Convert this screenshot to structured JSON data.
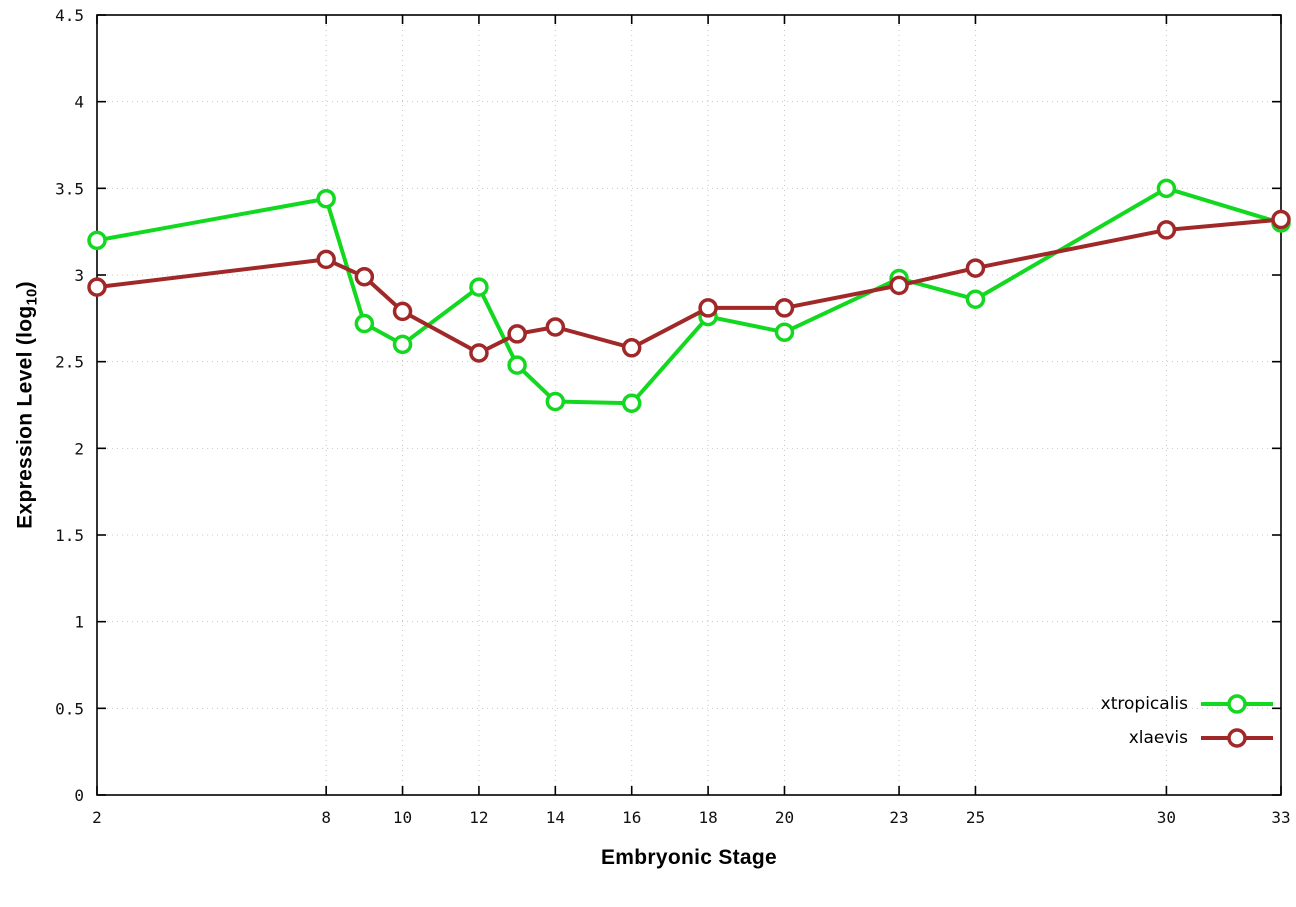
{
  "chart_data": {
    "type": "line",
    "xlabel": "Embryonic Stage",
    "ylabel": "Expression Level (log10)",
    "ylabel_parts": {
      "prefix": "Expression Level (log",
      "sub": "10",
      "suffix": ")"
    },
    "xlim": [
      2,
      33
    ],
    "ylim": [
      0,
      4.5
    ],
    "xticks": [
      2,
      8,
      10,
      12,
      14,
      16,
      18,
      20,
      23,
      25,
      30,
      33
    ],
    "yticks": [
      0,
      0.5,
      1,
      1.5,
      2,
      2.5,
      3,
      3.5,
      4,
      4.5
    ],
    "ytick_labels": [
      "0",
      "0.5",
      "1",
      "1.5",
      "2",
      "2.5",
      "3",
      "3.5",
      "4",
      "4.5"
    ],
    "grid": true,
    "grid_color": "#c8c8c8",
    "background": "#ffffff",
    "legend_position": "bottom-right",
    "marker": "open-circle",
    "x": [
      2,
      8,
      9,
      10,
      12,
      13,
      14,
      16,
      18,
      20,
      23,
      25,
      30,
      33
    ],
    "series": [
      {
        "name": "xtropicalis",
        "color": "#12d81f",
        "values": [
          3.2,
          3.44,
          2.72,
          2.6,
          2.93,
          2.48,
          2.27,
          2.26,
          2.76,
          2.67,
          2.98,
          2.86,
          3.5,
          3.3
        ]
      },
      {
        "name": "xlaevis",
        "color": "#a02828",
        "values": [
          2.93,
          3.09,
          2.99,
          2.79,
          2.55,
          2.66,
          2.7,
          2.58,
          2.81,
          2.81,
          2.94,
          3.04,
          3.26,
          3.32
        ]
      }
    ]
  }
}
